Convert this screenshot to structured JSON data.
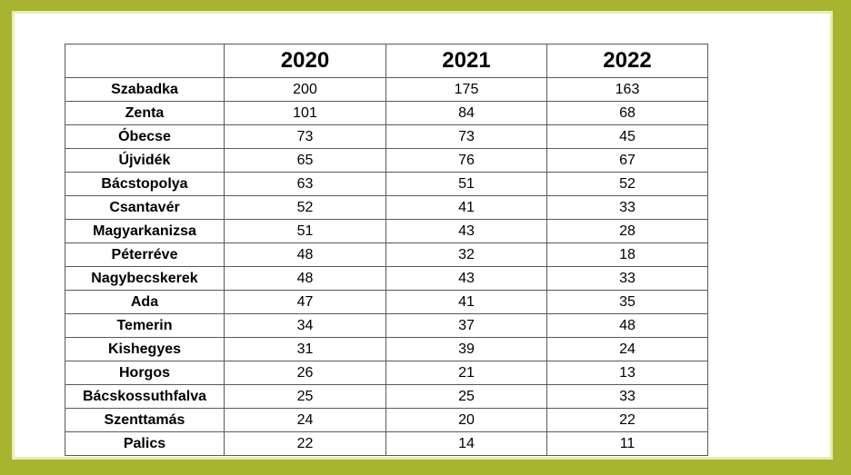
{
  "frame": {
    "border_color": "#a6b42f",
    "inner_edge_color": "#e6edb2",
    "background_color": "#ffffff",
    "grid_line_color": "#595959"
  },
  "chart_data": {
    "type": "table",
    "columns": [
      "",
      "2020",
      "2021",
      "2022"
    ],
    "rows": [
      [
        "Szabadka",
        200,
        175,
        163
      ],
      [
        "Zenta",
        101,
        84,
        68
      ],
      [
        "Óbecse",
        73,
        73,
        45
      ],
      [
        "Újvidék",
        65,
        76,
        67
      ],
      [
        "Bácstopolya",
        63,
        51,
        52
      ],
      [
        "Csantavér",
        52,
        41,
        33
      ],
      [
        "Magyarkanizsa",
        51,
        43,
        28
      ],
      [
        "Péterréve",
        48,
        32,
        18
      ],
      [
        "Nagybecskerek",
        48,
        43,
        33
      ],
      [
        "Ada",
        47,
        41,
        35
      ],
      [
        "Temerin",
        34,
        37,
        48
      ],
      [
        "Kishegyes",
        31,
        39,
        24
      ],
      [
        "Horgos",
        26,
        21,
        13
      ],
      [
        "Bácskossuthfalva",
        25,
        25,
        33
      ],
      [
        "Szenttamás",
        24,
        20,
        22
      ],
      [
        "Palics",
        22,
        14,
        11
      ]
    ]
  }
}
